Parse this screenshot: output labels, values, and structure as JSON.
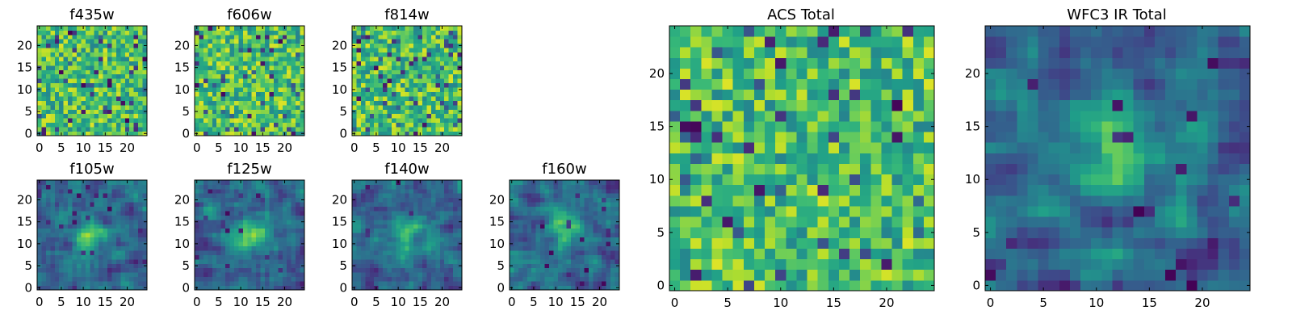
{
  "chart_data": [
    {
      "type": "heatmap",
      "title": "f435w",
      "grid": false,
      "colormap": "viridis",
      "xlim": [
        -0.5,
        24.5
      ],
      "ylim": [
        -0.5,
        24.5
      ],
      "x_ticks": [
        0,
        5,
        10,
        15,
        20
      ],
      "y_ticks": [
        0,
        5,
        10,
        15,
        20
      ],
      "x_tick_labels": [
        "0",
        "5",
        "10",
        "15",
        "20"
      ],
      "y_tick_labels": [
        "0",
        "5",
        "10",
        "15",
        "20"
      ],
      "rows": 25,
      "cols": 25,
      "pattern": "pixel-noise",
      "seed": 11
    },
    {
      "type": "heatmap",
      "title": "f606w",
      "grid": false,
      "colormap": "viridis",
      "xlim": [
        -0.5,
        24.5
      ],
      "ylim": [
        -0.5,
        24.5
      ],
      "x_ticks": [
        0,
        5,
        10,
        15,
        20
      ],
      "y_ticks": [
        0,
        5,
        10,
        15,
        20
      ],
      "x_tick_labels": [
        "0",
        "5",
        "10",
        "15",
        "20"
      ],
      "y_tick_labels": [
        "0",
        "5",
        "10",
        "15",
        "20"
      ],
      "rows": 25,
      "cols": 25,
      "pattern": "pixel-noise",
      "seed": 23
    },
    {
      "type": "heatmap",
      "title": "f814w",
      "grid": false,
      "colormap": "viridis",
      "xlim": [
        -0.5,
        24.5
      ],
      "ylim": [
        -0.5,
        24.5
      ],
      "x_ticks": [
        0,
        5,
        10,
        15,
        20
      ],
      "y_ticks": [
        0,
        5,
        10,
        15,
        20
      ],
      "x_tick_labels": [
        "0",
        "5",
        "10",
        "15",
        "20"
      ],
      "y_tick_labels": [
        "0",
        "5",
        "10",
        "15",
        "20"
      ],
      "rows": 25,
      "cols": 25,
      "pattern": "pixel-noise",
      "seed": 37
    },
    {
      "type": "heatmap",
      "title": "f105w",
      "grid": false,
      "colormap": "viridis",
      "xlim": [
        -0.5,
        24.5
      ],
      "ylim": [
        -0.5,
        24.5
      ],
      "x_ticks": [
        0,
        5,
        10,
        15,
        20
      ],
      "y_ticks": [
        0,
        5,
        10,
        15,
        20
      ],
      "x_tick_labels": [
        "0",
        "5",
        "10",
        "15",
        "20"
      ],
      "y_tick_labels": [
        "0",
        "5",
        "10",
        "15",
        "20"
      ],
      "rows": 25,
      "cols": 25,
      "pattern": "smooth-noise-central-source",
      "seed": 41
    },
    {
      "type": "heatmap",
      "title": "f125w",
      "grid": false,
      "colormap": "viridis",
      "xlim": [
        -0.5,
        24.5
      ],
      "ylim": [
        -0.5,
        24.5
      ],
      "x_ticks": [
        0,
        5,
        10,
        15,
        20
      ],
      "y_ticks": [
        0,
        5,
        10,
        15,
        20
      ],
      "x_tick_labels": [
        "0",
        "5",
        "10",
        "15",
        "20"
      ],
      "y_tick_labels": [
        "0",
        "5",
        "10",
        "15",
        "20"
      ],
      "rows": 25,
      "cols": 25,
      "pattern": "smooth-noise-central-source",
      "seed": 53
    },
    {
      "type": "heatmap",
      "title": "f140w",
      "grid": false,
      "colormap": "viridis",
      "xlim": [
        -0.5,
        24.5
      ],
      "ylim": [
        -0.5,
        24.5
      ],
      "x_ticks": [
        0,
        5,
        10,
        15,
        20
      ],
      "y_ticks": [
        0,
        5,
        10,
        15,
        20
      ],
      "x_tick_labels": [
        "0",
        "5",
        "10",
        "15",
        "20"
      ],
      "y_tick_labels": [
        "0",
        "5",
        "10",
        "15",
        "20"
      ],
      "rows": 25,
      "cols": 25,
      "pattern": "smooth-noise-central-source",
      "seed": 67
    },
    {
      "type": "heatmap",
      "title": "f160w",
      "grid": false,
      "colormap": "viridis",
      "xlim": [
        -0.5,
        24.5
      ],
      "ylim": [
        -0.5,
        24.5
      ],
      "x_ticks": [
        0,
        5,
        10,
        15,
        20
      ],
      "y_ticks": [
        0,
        5,
        10,
        15,
        20
      ],
      "x_tick_labels": [
        "0",
        "5",
        "10",
        "15",
        "20"
      ],
      "y_tick_labels": [
        "0",
        "5",
        "10",
        "15",
        "20"
      ],
      "rows": 25,
      "cols": 25,
      "pattern": "smooth-noise-central-source",
      "seed": 79
    },
    {
      "type": "heatmap",
      "title": "ACS Total",
      "grid": false,
      "colormap": "viridis",
      "xlim": [
        -0.5,
        24.5
      ],
      "ylim": [
        -0.5,
        24.5
      ],
      "x_ticks": [
        0,
        5,
        10,
        15,
        20
      ],
      "y_ticks": [
        0,
        5,
        10,
        15,
        20
      ],
      "x_tick_labels": [
        "0",
        "5",
        "10",
        "15",
        "20"
      ],
      "y_tick_labels": [
        "0",
        "5",
        "10",
        "15",
        "20"
      ],
      "rows": 25,
      "cols": 25,
      "pattern": "pixel-noise",
      "seed": 89
    },
    {
      "type": "heatmap",
      "title": "WFC3 IR Total",
      "grid": false,
      "colormap": "viridis",
      "xlim": [
        -0.5,
        24.5
      ],
      "ylim": [
        -0.5,
        24.5
      ],
      "x_ticks": [
        0,
        5,
        10,
        15,
        20
      ],
      "y_ticks": [
        0,
        5,
        10,
        15,
        20
      ],
      "x_tick_labels": [
        "0",
        "5",
        "10",
        "15",
        "20"
      ],
      "y_tick_labels": [
        "0",
        "5",
        "10",
        "15",
        "20"
      ],
      "rows": 25,
      "cols": 25,
      "pattern": "smooth-noise-central-source",
      "seed": 97
    }
  ]
}
